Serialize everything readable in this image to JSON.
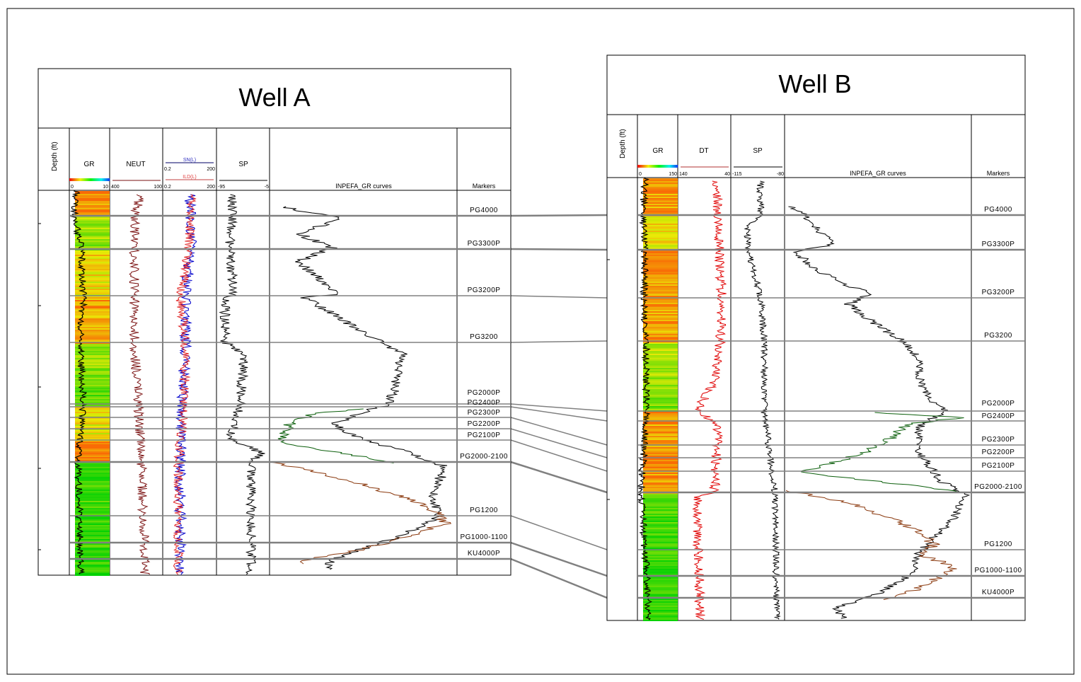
{
  "colors": {
    "correlation_line": "#808080",
    "gr_curve": "#000000",
    "neut_curve": "#7a1010",
    "sn_curve": "#0000cc",
    "ild_curve": "#e02020",
    "dt_curve": "#e00000",
    "inpefa_black": "#000000",
    "inpefa_green": "#0b5e0b",
    "inpefa_brown": "#8b3a0f"
  },
  "wells": [
    {
      "title": "Well A",
      "depth_label": "Depth (ft)",
      "tracks": {
        "gr": {
          "name": "GR",
          "min": "0",
          "max": "10"
        },
        "neut": {
          "name": "NEUT",
          "min": "400",
          "max": "100"
        },
        "res": {
          "sn": "SN(L)",
          "ild": "ILD(L)",
          "sn_min": "0.2",
          "sn_max": "200",
          "ild_min": "0.2",
          "ild_max": "200"
        },
        "sp": {
          "name": "SP",
          "min": "-95",
          "max": "-5"
        },
        "inpefa": {
          "name": "INPEFA_GR curves"
        },
        "markers": {
          "name": "Markers"
        }
      },
      "markers": [
        "PG4000",
        "PG3300P",
        "PG3200P",
        "PG3200",
        "PG2000P",
        "PG2400P",
        "PG2300P",
        "PG2200P",
        "PG2100P",
        "PG2000-2100",
        "PG1200",
        "PG1000-1100",
        "KU4000P"
      ]
    },
    {
      "title": "Well B",
      "depth_label": "Depth (ft)",
      "tracks": {
        "gr": {
          "name": "GR",
          "min": "0",
          "max": "150"
        },
        "dt": {
          "name": "DT",
          "min": "140",
          "max": "40"
        },
        "sp": {
          "name": "SP",
          "min": "-115",
          "max": "-80"
        },
        "inpefa": {
          "name": "INPEFA_GR curves"
        },
        "markers": {
          "name": "Markers"
        }
      },
      "markers": [
        "PG4000",
        "PG3300P",
        "PG3200P",
        "PG3200",
        "PG2000P",
        "PG2400P",
        "PG2300P",
        "PG2200P",
        "PG2100P",
        "PG2000-2100",
        "PG1200",
        "PG1000-1100",
        "KU4000P"
      ]
    }
  ]
}
